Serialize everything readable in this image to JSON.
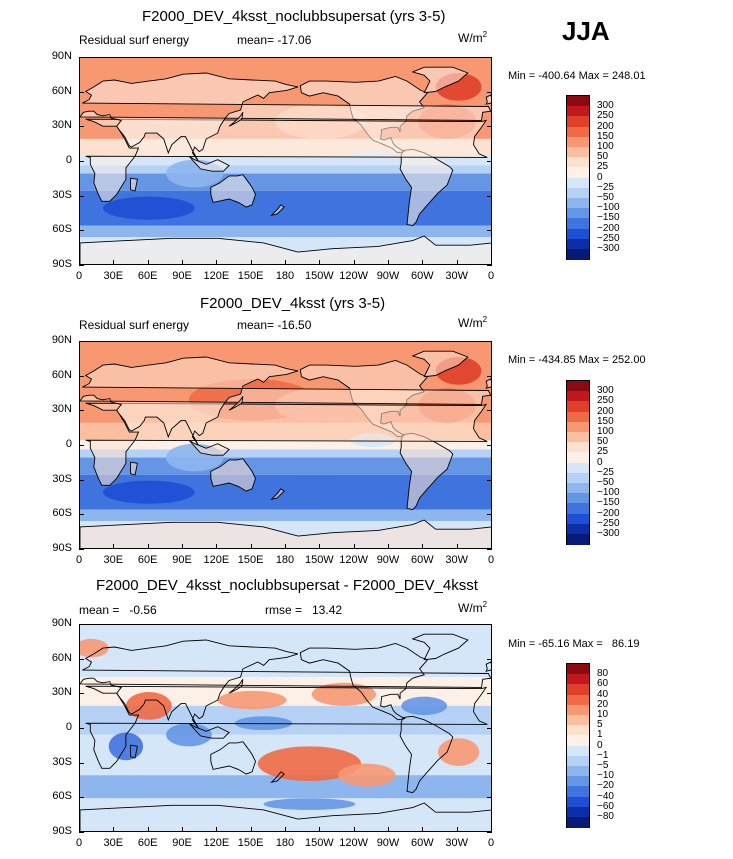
{
  "season": "JJA",
  "units_base": "W/m",
  "units_exp": "2",
  "chart_data": [
    {
      "type": "heatmap",
      "title": "F2000_DEV_4ksst_noclubbsupersat (yrs 3-5)",
      "variable": "Residual surf energy",
      "mean_text": "mean= -17.06",
      "min_max_text": "Min = -400.64  Max = 248.01",
      "min": -400.64,
      "max": 248.01,
      "mean": -17.06,
      "lat_ticks": [
        "90N",
        "60N",
        "30N",
        "0",
        "30S",
        "60S",
        "90S"
      ],
      "lon_ticks": [
        "0",
        "30E",
        "60E",
        "90E",
        "120E",
        "150E",
        "180",
        "150W",
        "120W",
        "90W",
        "60W",
        "30W",
        "0"
      ],
      "colorbar_levels": [
        "300",
        "250",
        "200",
        "150",
        "100",
        "50",
        "25",
        "0",
        "-25",
        "-50",
        "-100",
        "-150",
        "-200",
        "-250",
        "-300"
      ],
      "colorbar_colors": [
        "#8a0a10",
        "#c2171e",
        "#e0402a",
        "#f06a45",
        "#f79873",
        "#fbbfa0",
        "#fde1cf",
        "#fdf0e6",
        "#d5e6f8",
        "#b5d1f5",
        "#8db5ee",
        "#6596e6",
        "#3f73de",
        "#1e4fd4",
        "#0c2ea9",
        "#071a78"
      ]
    },
    {
      "type": "heatmap",
      "title": "F2000_DEV_4ksst (yrs 3-5)",
      "variable": "Residual surf energy",
      "mean_text": "mean= -16.50",
      "min_max_text": "Min = -434.85  Max = 252.00",
      "min": -434.85,
      "max": 252.0,
      "mean": -16.5,
      "lat_ticks": [
        "90N",
        "60N",
        "30N",
        "0",
        "30S",
        "60S",
        "90S"
      ],
      "lon_ticks": [
        "0",
        "30E",
        "60E",
        "90E",
        "120E",
        "150E",
        "180",
        "150W",
        "120W",
        "90W",
        "60W",
        "30W",
        "0"
      ],
      "colorbar_levels": [
        "300",
        "250",
        "200",
        "150",
        "100",
        "50",
        "25",
        "0",
        "-25",
        "-50",
        "-100",
        "-150",
        "-200",
        "-250",
        "-300"
      ],
      "colorbar_colors": [
        "#8a0a10",
        "#c2171e",
        "#e0402a",
        "#f06a45",
        "#f79873",
        "#fbbfa0",
        "#fde1cf",
        "#fdf0e6",
        "#d5e6f8",
        "#b5d1f5",
        "#8db5ee",
        "#6596e6",
        "#3f73de",
        "#1e4fd4",
        "#0c2ea9",
        "#071a78"
      ]
    },
    {
      "type": "heatmap",
      "title": "F2000_DEV_4ksst_noclubbsupersat - F2000_DEV_4ksst",
      "mean_text": "mean =   -0.56",
      "rmse_text": "rmse =   13.42",
      "min_max_text": "Min = -65.16 Max =   86.19",
      "min": -65.16,
      "max": 86.19,
      "mean": -0.56,
      "rmse": 13.42,
      "lat_ticks": [
        "90N",
        "60N",
        "30N",
        "0",
        "30S",
        "60S",
        "90S"
      ],
      "lon_ticks": [
        "0",
        "30E",
        "60E",
        "90E",
        "120E",
        "150E",
        "180",
        "150W",
        "120W",
        "90W",
        "60W",
        "30W",
        "0"
      ],
      "colorbar_levels": [
        "80",
        "60",
        "40",
        "20",
        "10",
        "5",
        "1",
        "0",
        "-1",
        "-5",
        "-10",
        "-20",
        "-40",
        "-60",
        "-80"
      ],
      "colorbar_colors": [
        "#8a0a10",
        "#c2171e",
        "#e0402a",
        "#f06a45",
        "#f79873",
        "#fbbfa0",
        "#fde1cf",
        "#fdf0e6",
        "#d5e6f8",
        "#b5d1f5",
        "#8db5ee",
        "#6596e6",
        "#3f73de",
        "#1e4fd4",
        "#0c2ea9",
        "#071a78"
      ]
    }
  ]
}
